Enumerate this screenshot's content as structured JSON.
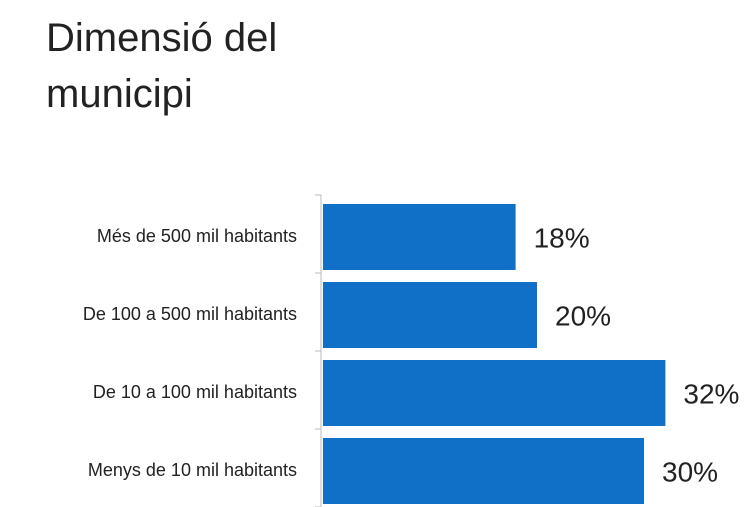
{
  "chart_data": {
    "type": "bar",
    "orientation": "horizontal",
    "title": "Dimensió del municipi",
    "categories": [
      "Més de 500 mil habitants",
      "De 100 a 500 mil habitants",
      "De 10 a 100 mil habitants",
      "Menys de 10 mil habitants"
    ],
    "values": [
      18,
      20,
      32,
      30
    ],
    "value_labels": [
      "18%",
      "20%",
      "32%",
      "30%"
    ],
    "color": "#1070c8"
  }
}
